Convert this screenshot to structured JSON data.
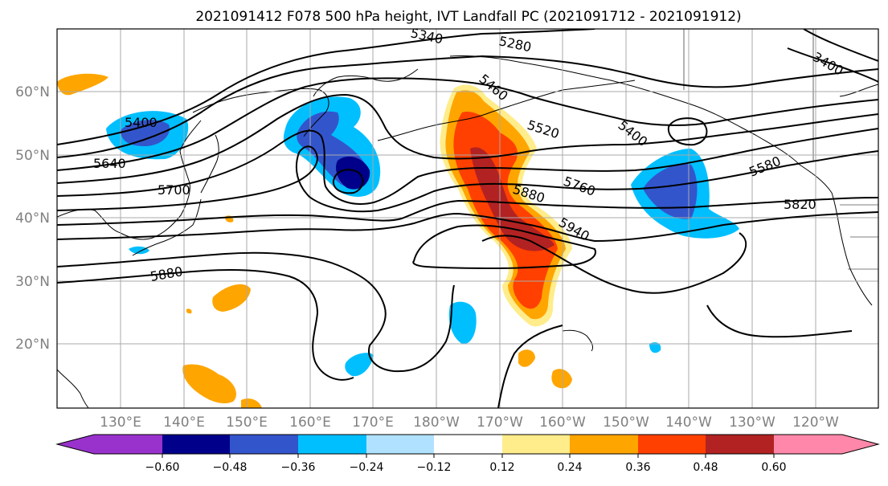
{
  "title": "2021091412 F078 500 hPa height, IVT Landfall PC (2021091712 - 2021091912)",
  "lat_ticks": [
    "60°N",
    "50°N",
    "40°N",
    "30°N",
    "20°N"
  ],
  "lon_ticks": [
    "130°E",
    "140°E",
    "150°E",
    "160°E",
    "170°E",
    "180°W",
    "170°W",
    "160°W",
    "150°W",
    "140°W",
    "130°W",
    "120°W"
  ],
  "contour_labels": [
    "5340",
    "5280",
    "5460",
    "5400",
    "5520",
    "5400",
    "5580",
    "5640",
    "5700",
    "5760",
    "5820",
    "5880",
    "5940",
    "5880",
    "3400"
  ],
  "colorbar": {
    "ticks": [
      "−0.60",
      "−0.48",
      "−0.36",
      "−0.24",
      "−0.12",
      "0.12",
      "0.24",
      "0.36",
      "0.48",
      "0.60"
    ],
    "colors": {
      "under": "#9932cc",
      "c1": "#00008b",
      "c2": "#3355cc",
      "c3": "#00bfff",
      "c4": "#b0e2ff",
      "c5": "#ffffff",
      "c6": "#ffec8b",
      "c7": "#ffa500",
      "c8": "#ff4000",
      "c9": "#b22222",
      "over": "#ff88aa"
    }
  }
}
